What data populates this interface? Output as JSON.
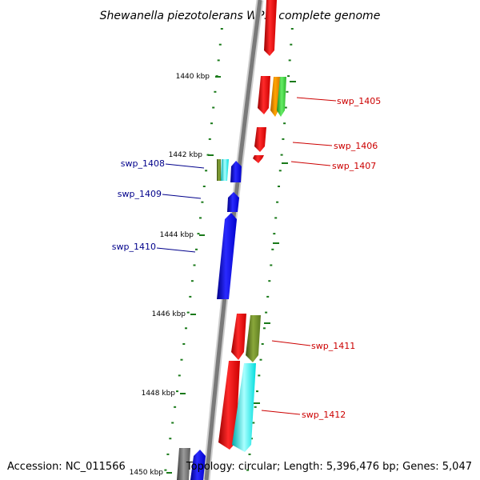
{
  "title": "Shewanella piezotolerans WP3, complete genome",
  "footer": {
    "accession": "Accession: NC_011566",
    "topology": "Topology: circular; Length: 5,396,476 bp; Genes: 5,047"
  },
  "colors": {
    "backbone": "#8c8c8c",
    "tick": "#1a7a1a",
    "forward_label": "#cc0000",
    "reverse_label": "#00008b",
    "red": "#ff0000",
    "blue": "#0000ff",
    "orange": "#ff8c00",
    "green": "#32cd32",
    "olive": "#6b8e23",
    "cyan": "#00ffff",
    "gray": "#696969"
  },
  "kbp_labels": [
    "1440 kbp",
    "1442 kbp",
    "1444 kbp",
    "1446 kbp",
    "1448 kbp",
    "1450 kbp"
  ],
  "gene_labels": {
    "swp_1405": "swp_1405",
    "swp_1406": "swp_1406",
    "swp_1407": "swp_1407",
    "swp_1408": "swp_1408",
    "swp_1409": "swp_1409",
    "swp_1410": "swp_1410",
    "swp_1411": "swp_1411",
    "swp_1412": "swp_1412"
  }
}
